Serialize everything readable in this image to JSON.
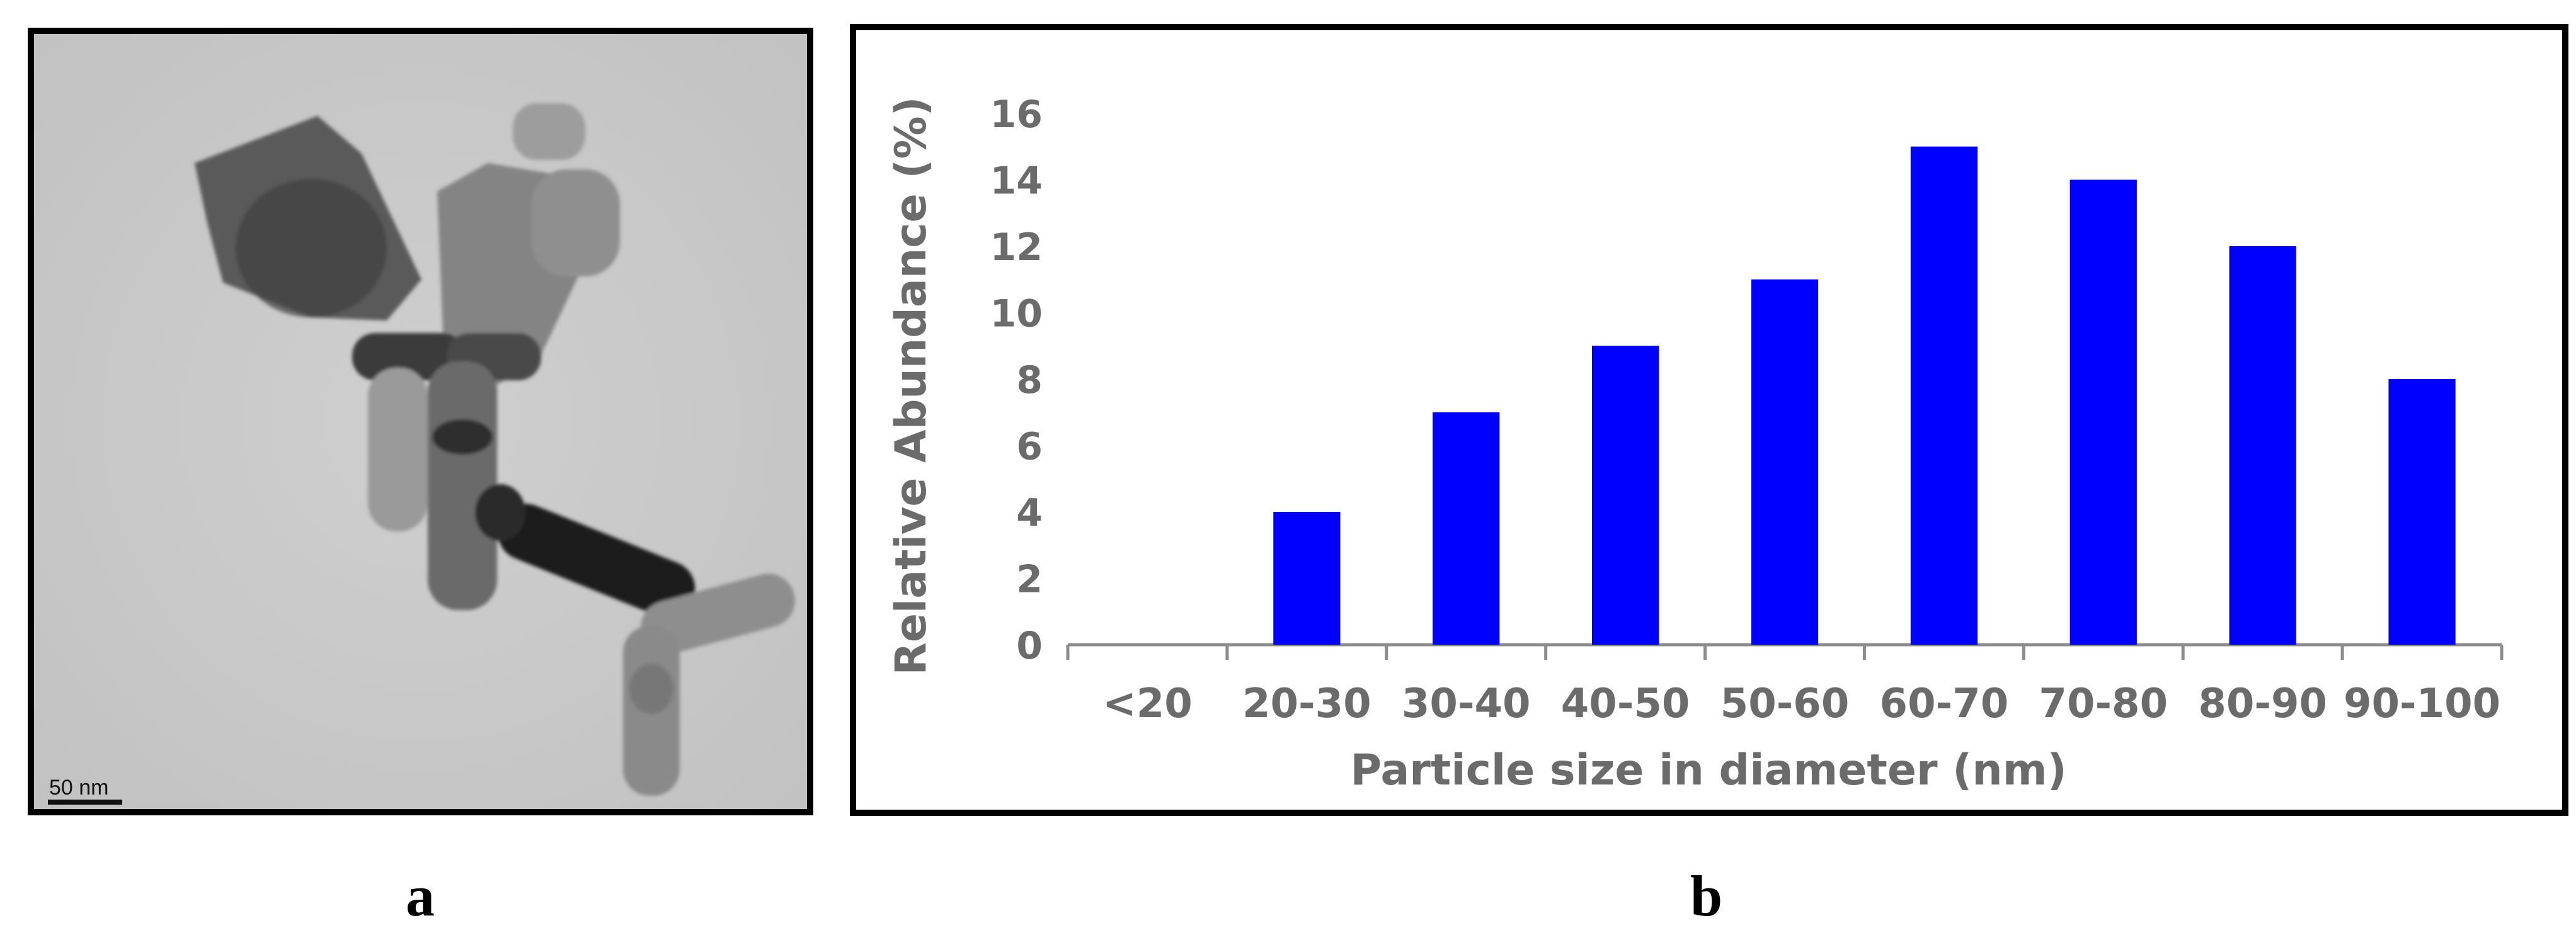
{
  "panel_a": {
    "scale_bar_label": "50 nm",
    "letter": "a"
  },
  "panel_b": {
    "letter": "b"
  },
  "chart_data": {
    "type": "bar",
    "categories": [
      "<20",
      "20-30",
      "30-40",
      "40-50",
      "50-60",
      "60-70",
      "70-80",
      "80-90",
      "90-100"
    ],
    "values": [
      0,
      4,
      7,
      9,
      11,
      15,
      14,
      12,
      8
    ],
    "xlabel": "Particle size in diameter (nm)",
    "ylabel": "Relative Abundance (%)",
    "ylim": [
      0,
      16
    ],
    "yticks": [
      0,
      2,
      4,
      6,
      8,
      10,
      12,
      14,
      16
    ],
    "bar_color": "#0000ff",
    "axis_color": "#8c8c8c",
    "text_color": "#6b6b6b",
    "grid": false,
    "legend": "none"
  }
}
